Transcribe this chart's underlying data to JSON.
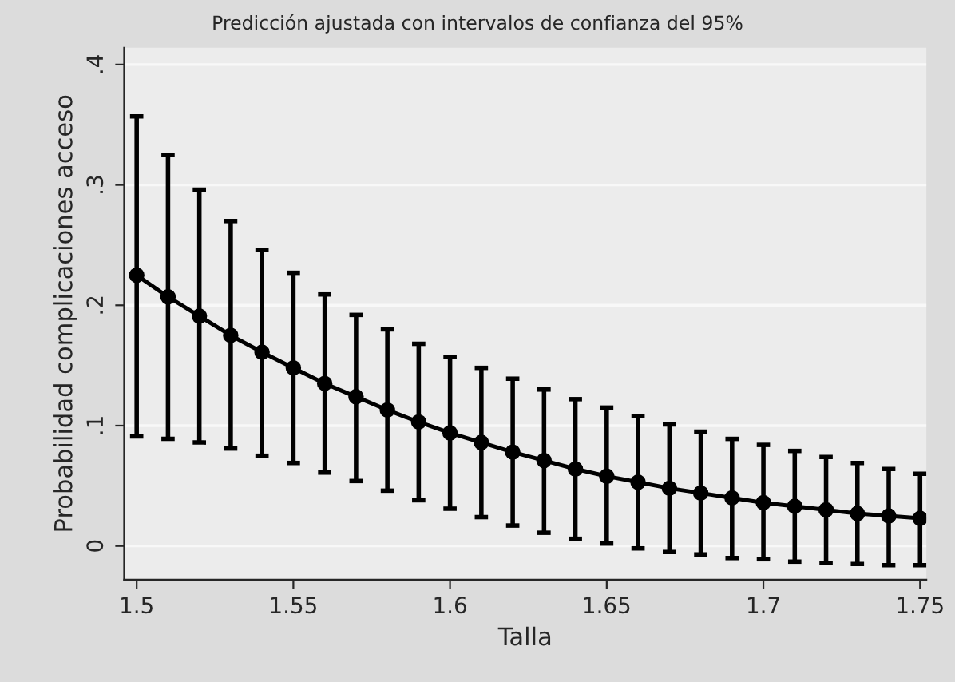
{
  "chart_data": {
    "type": "line",
    "title": "Predicción ajustada con intervalos de confianza del 95%",
    "xlabel": "Talla",
    "ylabel": "Probabilidad complicaciones acceso",
    "x": [
      1.5,
      1.51,
      1.52,
      1.53,
      1.54,
      1.55,
      1.56,
      1.57,
      1.58,
      1.59,
      1.6,
      1.61,
      1.62,
      1.63,
      1.64,
      1.65,
      1.66,
      1.67,
      1.68,
      1.69,
      1.7,
      1.71,
      1.72,
      1.73,
      1.74,
      1.75
    ],
    "series": [
      {
        "color": "#000000",
        "values": [
          0.225,
          0.207,
          0.191,
          0.175,
          0.161,
          0.148,
          0.135,
          0.124,
          0.113,
          0.103,
          0.094,
          0.086,
          0.078,
          0.071,
          0.064,
          0.058,
          0.053,
          0.048,
          0.044,
          0.04,
          0.036,
          0.033,
          0.03,
          0.027,
          0.025,
          0.023
        ],
        "errors": [
          [
            0.091,
            0.357
          ],
          [
            0.089,
            0.325
          ],
          [
            0.086,
            0.296
          ],
          [
            0.081,
            0.27
          ],
          [
            0.075,
            0.246
          ],
          [
            0.069,
            0.227
          ],
          [
            0.061,
            0.209
          ],
          [
            0.054,
            0.192
          ],
          [
            0.046,
            0.18
          ],
          [
            0.038,
            0.168
          ],
          [
            0.031,
            0.157
          ],
          [
            0.024,
            0.148
          ],
          [
            0.017,
            0.139
          ],
          [
            0.011,
            0.13
          ],
          [
            0.006,
            0.122
          ],
          [
            0.002,
            0.115
          ],
          [
            -0.002,
            0.108
          ],
          [
            -0.005,
            0.101
          ],
          [
            -0.007,
            0.095
          ],
          [
            -0.01,
            0.089
          ],
          [
            -0.011,
            0.084
          ],
          [
            -0.013,
            0.079
          ],
          [
            -0.014,
            0.074
          ],
          [
            -0.015,
            0.069
          ],
          [
            -0.016,
            0.064
          ],
          [
            -0.016,
            0.06
          ]
        ]
      }
    ],
    "xlim": [
      1.496,
      1.752
    ],
    "xticks": [
      1.5,
      1.55,
      1.6,
      1.65,
      1.7,
      1.75
    ],
    "ylim": [
      -0.028,
      0.414
    ],
    "yticks": [
      {
        "value": 0,
        "label": "0"
      },
      {
        "value": 0.1,
        "label": ".1"
      },
      {
        "value": 0.2,
        "label": ".2"
      },
      {
        "value": 0.3,
        "label": ".3"
      },
      {
        "value": 0.4,
        "label": ".4"
      }
    ],
    "grid": "y",
    "marker": "circle",
    "line_style": "solid"
  }
}
